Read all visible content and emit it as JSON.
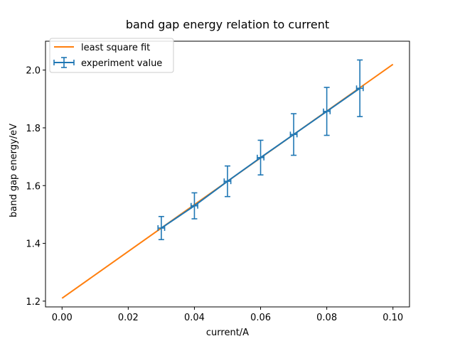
{
  "chart_data": {
    "type": "line",
    "title": "band gap energy relation to current",
    "xlabel": "current/A",
    "ylabel": "band gap energy/eV",
    "xlim": [
      -0.005,
      0.105
    ],
    "ylim": [
      1.18,
      2.1
    ],
    "xticks": [
      0.0,
      0.02,
      0.04,
      0.06,
      0.08,
      0.1
    ],
    "xtick_labels": [
      "0.00",
      "0.02",
      "0.04",
      "0.06",
      "0.08",
      "0.10"
    ],
    "yticks": [
      1.2,
      1.4,
      1.6,
      1.8,
      2.0
    ],
    "ytick_labels": [
      "1.2",
      "1.4",
      "1.6",
      "1.8",
      "2.0"
    ],
    "grid": false,
    "legend_position": "top-left",
    "series": [
      {
        "name": "least square fit",
        "kind": "line",
        "color": "#ff7f0e",
        "x": [
          0.0,
          0.1
        ],
        "y": [
          1.21,
          2.02
        ]
      },
      {
        "name": "experiment value",
        "kind": "errorbar",
        "color": "#1f77b4",
        "x": [
          0.03,
          0.04,
          0.05,
          0.06,
          0.07,
          0.08,
          0.09
        ],
        "y": [
          1.453,
          1.53,
          1.615,
          1.697,
          1.777,
          1.857,
          1.937
        ],
        "yerr": [
          0.04,
          0.045,
          0.053,
          0.06,
          0.072,
          0.083,
          0.098
        ],
        "xerr": [
          0.001,
          0.001,
          0.001,
          0.001,
          0.001,
          0.001,
          0.001
        ]
      }
    ]
  }
}
